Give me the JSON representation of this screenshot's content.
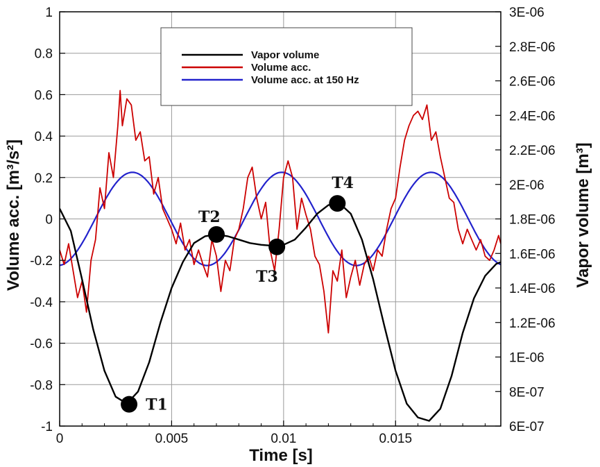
{
  "chart_data": {
    "type": "line",
    "title": "",
    "xlabel": "Time [s]",
    "ylabel_left": "Volume acc. [m³/s²]",
    "ylabel_right": "Vapor volume [m³]",
    "xlim": [
      0,
      0.0197
    ],
    "ylim_left": [
      -1,
      1
    ],
    "ylim_right": [
      6e-07,
      3e-06
    ],
    "x_ticks": [
      "0",
      "0.005",
      "0.01",
      "0.015"
    ],
    "x_tick_values": [
      0,
      0.005,
      0.01,
      0.015
    ],
    "y_left_ticks": [
      "-1",
      "-0.8",
      "-0.6",
      "-0.4",
      "-0.2",
      "0",
      "0.2",
      "0.4",
      "0.6",
      "0.8",
      "1"
    ],
    "y_left_tick_values": [
      -1,
      -0.8,
      -0.6,
      -0.4,
      -0.2,
      0,
      0.2,
      0.4,
      0.6,
      0.8,
      1
    ],
    "y_right_ticks": [
      "6E-07",
      "8E-07",
      "1E-06",
      "1.2E-06",
      "1.4E-06",
      "1.6E-06",
      "1.8E-06",
      "2E-06",
      "2.2E-06",
      "2.4E-06",
      "2.6E-06",
      "2.8E-06",
      "3E-06"
    ],
    "y_right_tick_values": [
      6e-07,
      8e-07,
      1e-06,
      1.2e-06,
      1.4e-06,
      1.6e-06,
      1.8e-06,
      2e-06,
      2.2e-06,
      2.4e-06,
      2.6e-06,
      2.8e-06,
      3e-06
    ],
    "grid": true,
    "legend_position": "top-center",
    "series": [
      {
        "name": "Vapor volume",
        "axis": "right",
        "color": "#000000",
        "x": [
          0,
          0.0005,
          0.001,
          0.0015,
          0.002,
          0.0025,
          0.003,
          0.0035,
          0.004,
          0.0045,
          0.005,
          0.0055,
          0.006,
          0.0065,
          0.007,
          0.0075,
          0.008,
          0.0085,
          0.009,
          0.0095,
          0.01,
          0.0105,
          0.011,
          0.0115,
          0.012,
          0.0125,
          0.013,
          0.0135,
          0.014,
          0.0145,
          0.015,
          0.0155,
          0.016,
          0.0165,
          0.017,
          0.0175,
          0.018,
          0.0185,
          0.019,
          0.0195,
          0.0197
        ],
        "values": [
          1.86e-06,
          1.73e-06,
          1.45e-06,
          1.16e-06,
          9.2e-07,
          7.7e-07,
          7.3e-07,
          8e-07,
          9.7e-07,
          1.2e-06,
          1.4e-06,
          1.55e-06,
          1.66e-06,
          1.7e-06,
          1.71e-06,
          1.7e-06,
          1.68e-06,
          1.66e-06,
          1.65e-06,
          1.645e-06,
          1.65e-06,
          1.68e-06,
          1.75e-06,
          1.83e-06,
          1.88e-06,
          1.89e-06,
          1.83e-06,
          1.68e-06,
          1.45e-06,
          1.18e-06,
          9.2e-07,
          7.3e-07,
          6.5e-07,
          6.3e-07,
          7e-07,
          8.9e-07,
          1.14e-06,
          1.34e-06,
          1.47e-06,
          1.54e-06,
          1.55e-06
        ]
      },
      {
        "name": "Volume acc.",
        "axis": "left",
        "color": "#cc0000",
        "x": [
          0,
          0.0002,
          0.0004,
          0.0006,
          0.0008,
          0.001,
          0.0012,
          0.0014,
          0.0016,
          0.0018,
          0.002,
          0.0022,
          0.0024,
          0.0026,
          0.0027,
          0.0028,
          0.003,
          0.0032,
          0.0034,
          0.0036,
          0.0038,
          0.004,
          0.0042,
          0.0044,
          0.0046,
          0.0048,
          0.005,
          0.0052,
          0.0054,
          0.0056,
          0.0058,
          0.006,
          0.0062,
          0.0064,
          0.0066,
          0.0068,
          0.007,
          0.0072,
          0.0074,
          0.0076,
          0.0078,
          0.008,
          0.0082,
          0.0084,
          0.0086,
          0.0088,
          0.009,
          0.0092,
          0.0094,
          0.0096,
          0.0098,
          0.01,
          0.0102,
          0.0104,
          0.0106,
          0.0108,
          0.011,
          0.0112,
          0.0114,
          0.0116,
          0.0118,
          0.012,
          0.0122,
          0.0124,
          0.0126,
          0.0128,
          0.013,
          0.0132,
          0.0134,
          0.0136,
          0.0138,
          0.014,
          0.0142,
          0.0144,
          0.0146,
          0.0148,
          0.015,
          0.0152,
          0.0154,
          0.0156,
          0.0158,
          0.016,
          0.0162,
          0.0164,
          0.0166,
          0.0168,
          0.017,
          0.0172,
          0.0174,
          0.0176,
          0.0178,
          0.018,
          0.0182,
          0.0184,
          0.0186,
          0.0188,
          0.019,
          0.0192,
          0.0194,
          0.0196,
          0.0197
        ],
        "values": [
          -0.15,
          -0.22,
          -0.12,
          -0.25,
          -0.38,
          -0.3,
          -0.45,
          -0.2,
          -0.1,
          0.15,
          0.05,
          0.32,
          0.2,
          0.45,
          0.62,
          0.45,
          0.58,
          0.55,
          0.38,
          0.42,
          0.28,
          0.3,
          0.12,
          0.2,
          0.05,
          0.0,
          -0.05,
          -0.12,
          -0.02,
          -0.15,
          -0.1,
          -0.22,
          -0.15,
          -0.22,
          -0.28,
          -0.1,
          -0.18,
          -0.35,
          -0.2,
          -0.25,
          -0.1,
          -0.05,
          0.05,
          0.2,
          0.25,
          0.1,
          0.0,
          0.08,
          -0.15,
          -0.25,
          -0.05,
          0.2,
          0.28,
          0.2,
          -0.05,
          0.1,
          0.02,
          -0.05,
          -0.18,
          -0.22,
          -0.35,
          -0.55,
          -0.25,
          -0.3,
          -0.15,
          -0.38,
          -0.28,
          -0.2,
          -0.32,
          -0.22,
          -0.18,
          -0.25,
          -0.15,
          -0.18,
          -0.05,
          0.05,
          0.1,
          0.25,
          0.38,
          0.45,
          0.5,
          0.52,
          0.48,
          0.55,
          0.38,
          0.42,
          0.3,
          0.2,
          0.1,
          0.08,
          -0.05,
          -0.12,
          -0.05,
          -0.1,
          -0.15,
          -0.1,
          -0.18,
          -0.2,
          -0.15,
          -0.08,
          -0.12
        ]
      },
      {
        "name": "Volume acc. at 150 Hz",
        "axis": "left",
        "color": "#2222cc",
        "frequency_hz": 150,
        "amplitude": 0.225,
        "offset": 0.0,
        "peak_time": 0.00325
      }
    ],
    "annotations": [
      {
        "label": "T1",
        "x": 0.0031,
        "y": -0.895
      },
      {
        "label": "T2",
        "x": 0.007,
        "y": -0.075
      },
      {
        "label": "T3",
        "x": 0.0097,
        "y": -0.135
      },
      {
        "label": "T4",
        "x": 0.0124,
        "y": 0.075
      }
    ]
  }
}
